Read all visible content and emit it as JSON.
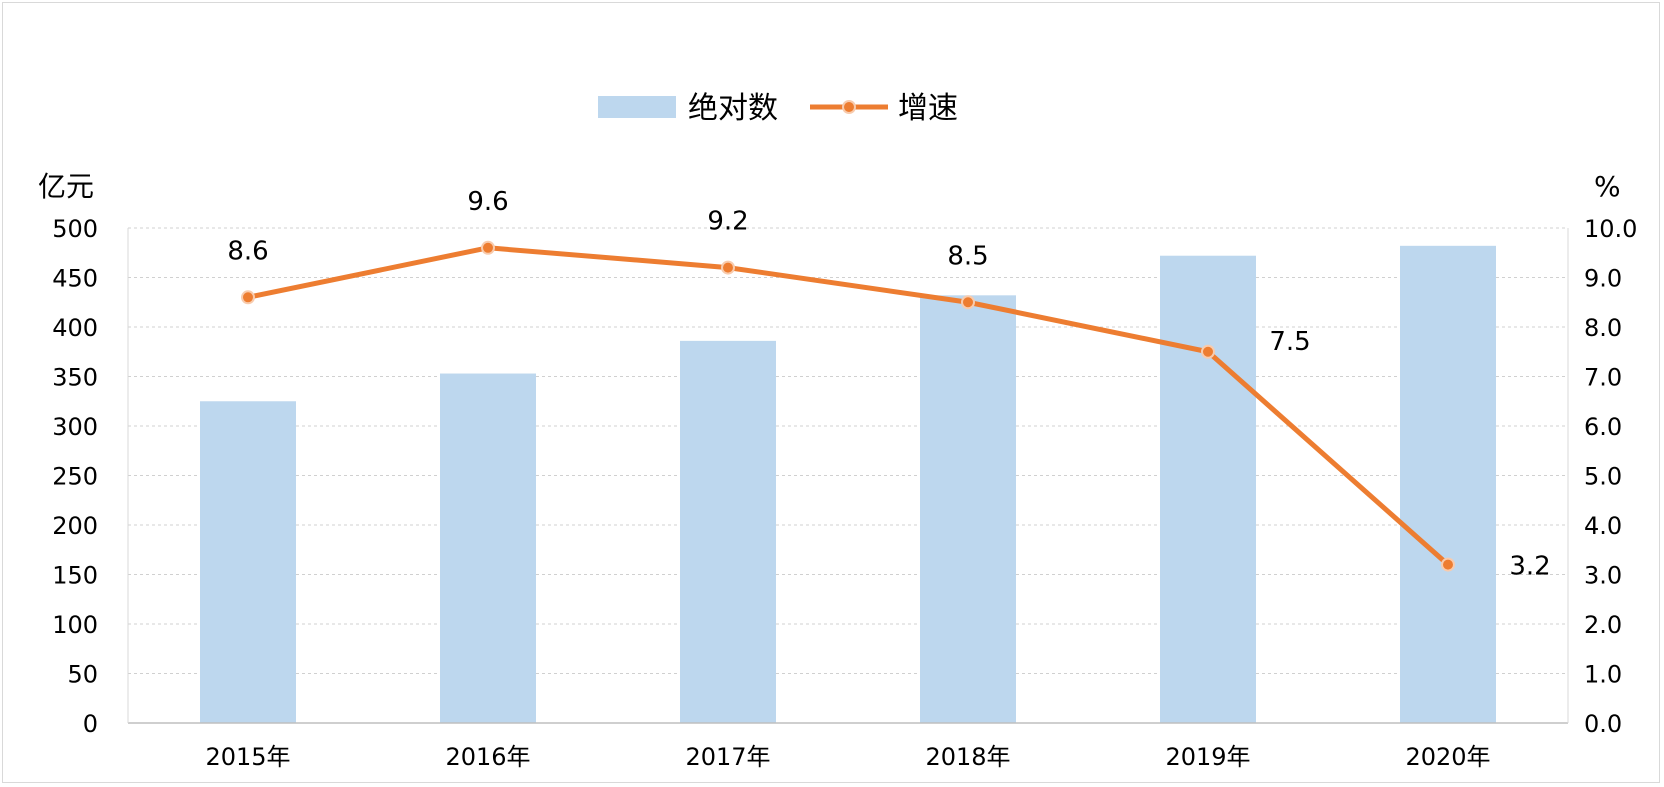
{
  "chart_data": {
    "type": "bar",
    "categories": [
      "2015年",
      "2016年",
      "2017年",
      "2018年",
      "2019年",
      "2020年"
    ],
    "series": [
      {
        "name": "绝对数",
        "type": "bar",
        "axis": "left",
        "color": "#bdd7ee",
        "values": [
          325,
          353,
          386,
          432,
          472,
          482
        ]
      },
      {
        "name": "增速",
        "type": "line",
        "axis": "right",
        "color": "#ed7d31",
        "values": [
          8.6,
          9.6,
          9.2,
          8.5,
          7.5,
          3.2
        ],
        "data_labels": [
          "8.6",
          "9.6",
          "9.2",
          "8.5",
          "7.5",
          "3.2"
        ]
      }
    ],
    "y_left": {
      "unit": "亿元",
      "ylim": [
        0,
        500
      ],
      "ticks": [
        "0",
        "50",
        "100",
        "150",
        "200",
        "250",
        "300",
        "350",
        "400",
        "450",
        "500"
      ]
    },
    "y_right": {
      "unit": "%",
      "ylim": [
        0,
        10
      ],
      "ticks": [
        "0.0",
        "1.0",
        "2.0",
        "3.0",
        "4.0",
        "5.0",
        "6.0",
        "7.0",
        "8.0",
        "9.0",
        "10.0"
      ]
    },
    "grid": true,
    "legend_position": "top-center"
  }
}
